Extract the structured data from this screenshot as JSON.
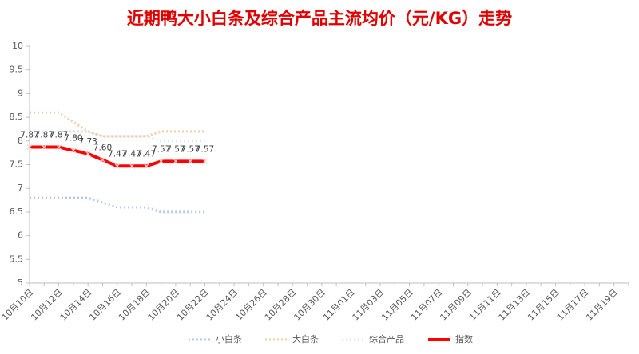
{
  "chart_data": {
    "type": "line",
    "title": "近期鸭大小白条及综合产品主流均价（元/KG）走势",
    "categories": [
      "10月10日",
      null,
      "10月12日",
      null,
      "10月14日",
      null,
      "10月16日",
      null,
      "10月18日",
      null,
      "10月20日",
      null,
      "10月22日",
      null,
      "10月24日",
      null,
      "10月26日",
      null,
      "10月28日",
      null,
      "10月30日",
      null,
      "11月01日",
      null,
      "11月03日",
      null,
      "11月05日",
      null,
      "11月07日",
      null,
      "11月09日",
      null,
      "11月11日",
      null,
      "11月13日",
      null,
      "11月15日",
      null,
      "11月17日",
      null,
      "11月19日",
      null
    ],
    "series": [
      {
        "name": "小白条",
        "color": "#b4c7e7",
        "dash": "dotted",
        "values": [
          6.8,
          6.8,
          6.8,
          6.8,
          6.8,
          6.7,
          6.6,
          6.6,
          6.6,
          6.5,
          6.5,
          6.5,
          6.5,
          null,
          null,
          null,
          null,
          null,
          null,
          null,
          null,
          null,
          null,
          null,
          null,
          null,
          null,
          null,
          null,
          null,
          null,
          null,
          null,
          null,
          null,
          null,
          null,
          null,
          null,
          null,
          null,
          null
        ]
      },
      {
        "name": "大白条",
        "color": "#f8cbad",
        "dash": "dotted",
        "values": [
          8.6,
          8.6,
          8.6,
          8.4,
          8.2,
          8.1,
          8.1,
          8.1,
          8.1,
          8.2,
          8.2,
          8.2,
          8.2,
          null,
          null,
          null,
          null,
          null,
          null,
          null,
          null,
          null,
          null,
          null,
          null,
          null,
          null,
          null,
          null,
          null,
          null,
          null,
          null,
          null,
          null,
          null,
          null,
          null,
          null,
          null,
          null,
          null
        ]
      },
      {
        "name": "综合产品",
        "color": "#dae3f3",
        "dash": "dotted",
        "values": [
          8.2,
          8.2,
          8.2,
          8.2,
          8.2,
          8.1,
          8.1,
          8.1,
          8.1,
          8.0,
          8.0,
          8.0,
          8.0,
          null,
          null,
          null,
          null,
          null,
          null,
          null,
          null,
          null,
          null,
          null,
          null,
          null,
          null,
          null,
          null,
          null,
          null,
          null,
          null,
          null,
          null,
          null,
          null,
          null,
          null,
          null,
          null,
          null
        ]
      },
      {
        "name": "指数",
        "color": "#ff0000",
        "dash": "solid",
        "markers": true,
        "values": [
          7.87,
          7.87,
          7.87,
          7.8,
          7.73,
          7.6,
          7.47,
          7.47,
          7.47,
          7.57,
          7.57,
          7.57,
          7.57,
          null,
          null,
          null,
          null,
          null,
          null,
          null,
          null,
          null,
          null,
          null,
          null,
          null,
          null,
          null,
          null,
          null,
          null,
          null,
          null,
          null,
          null,
          null,
          null,
          null,
          null,
          null,
          null,
          null
        ],
        "value_labels": [
          "7.87",
          "7.87",
          "7.87",
          "7.80",
          "7.73",
          "7.60",
          "7.47",
          "7.47",
          "7.47",
          "7.57",
          "7.57",
          "7.57",
          "7.57",
          null,
          null,
          null,
          null,
          null,
          null,
          null,
          null,
          null,
          null,
          null,
          null,
          null,
          null,
          null,
          null,
          null,
          null,
          null,
          null,
          null,
          null,
          null,
          null,
          null,
          null,
          null,
          null,
          null
        ]
      }
    ],
    "ylim": [
      5,
      10
    ],
    "yticks": [
      5,
      5.5,
      6,
      6.5,
      7,
      7.5,
      8,
      8.5,
      9,
      9.5,
      10
    ],
    "grid": false,
    "legend": "bottom"
  }
}
